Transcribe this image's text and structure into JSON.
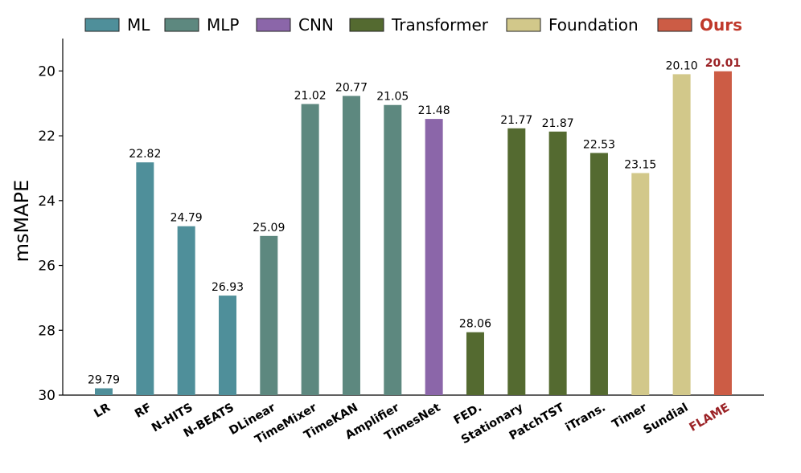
{
  "chart_data": {
    "type": "bar",
    "title": "",
    "xlabel": "",
    "ylabel": "msMAPE",
    "ylim": [
      30,
      19
    ],
    "y_inverted": true,
    "yticks": [
      20,
      22,
      24,
      26,
      28,
      30
    ],
    "grid": false,
    "legend_position": "top",
    "categories": [
      "LR",
      "RF",
      "N-HITS",
      "N-BEATS",
      "DLinear",
      "TimeMixer",
      "TimeKAN",
      "Amplifier",
      "TimesNet",
      "FED.",
      "Stationary",
      "PatchTST",
      "iTrans.",
      "Timer",
      "Sundial",
      "FLAME"
    ],
    "values": [
      29.79,
      22.82,
      24.79,
      26.93,
      25.09,
      21.02,
      20.77,
      21.05,
      21.48,
      28.06,
      21.77,
      21.87,
      22.53,
      23.15,
      20.1,
      20.01
    ],
    "value_labels": [
      "29.79",
      "22.82",
      "24.79",
      "26.93",
      "25.09",
      "21.02",
      "20.77",
      "21.05",
      "21.48",
      "28.06",
      "21.77",
      "21.87",
      "22.53",
      "23.15",
      "20.10",
      "20.01"
    ],
    "groups": [
      "ML",
      "ML",
      "ML",
      "ML",
      "MLP",
      "MLP",
      "MLP",
      "MLP",
      "CNN",
      "Transformer",
      "Transformer",
      "Transformer",
      "Transformer",
      "Foundation",
      "Foundation",
      "Ours"
    ],
    "legend": [
      {
        "name": "ML",
        "color": "#4f8f9a"
      },
      {
        "name": "MLP",
        "color": "#5d887f"
      },
      {
        "name": "CNN",
        "color": "#8b66a9"
      },
      {
        "name": "Transformer",
        "color": "#546a30"
      },
      {
        "name": "Foundation",
        "color": "#d2c88a"
      },
      {
        "name": "Ours",
        "color": "#cc5c45"
      }
    ],
    "highlight_category": "FLAME"
  }
}
